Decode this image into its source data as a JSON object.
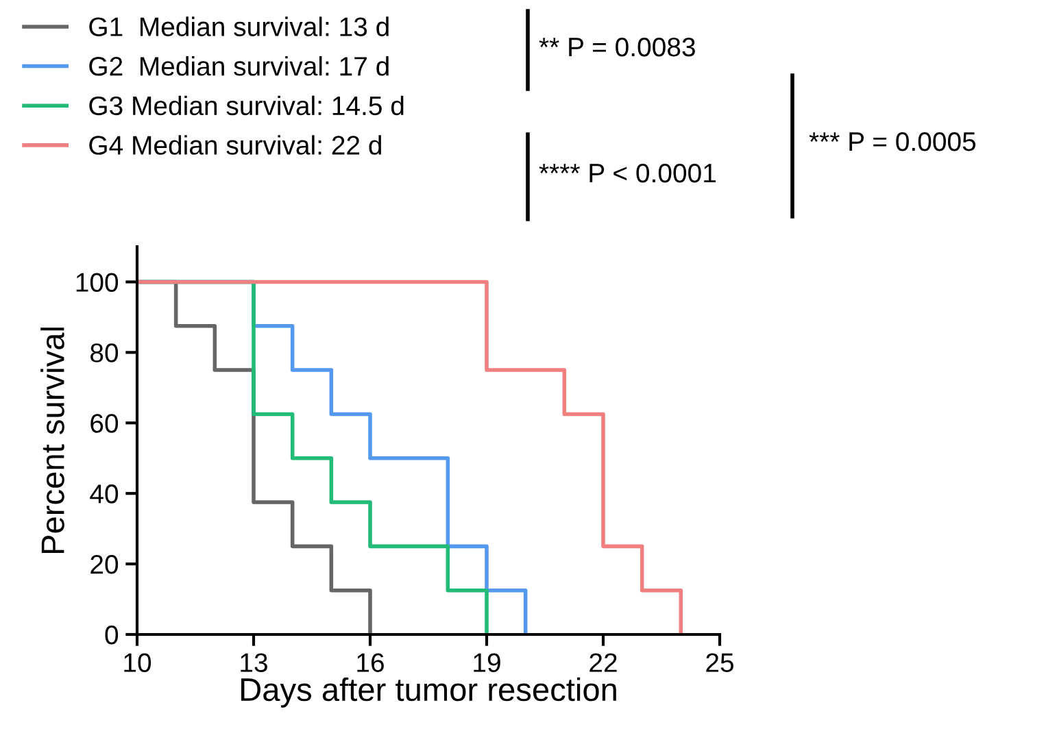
{
  "chart_data": {
    "type": "step",
    "xlabel": "Days after tumor resection",
    "ylabel": "Percent survival",
    "xlim": [
      10,
      25
    ],
    "xticks": [
      10,
      13,
      16,
      19,
      22,
      25
    ],
    "ylim": [
      0,
      110
    ],
    "yticks": [
      0,
      20,
      40,
      60,
      80,
      100
    ],
    "grid": false,
    "legend": "top left",
    "marker": "none",
    "line_style": "solid",
    "series": [
      {
        "name": "G1  Median survival: 13 d",
        "color": "#666666",
        "x": [
          10,
          11,
          12,
          13,
          14,
          15,
          16
        ],
        "values": [
          100,
          87.5,
          75,
          37.5,
          25,
          12.5,
          0
        ]
      },
      {
        "name": "G2  Median survival: 17 d",
        "color": "#5599ee",
        "x": [
          10,
          13,
          14,
          15,
          16,
          18,
          19,
          20
        ],
        "values": [
          100,
          87.5,
          75,
          62.5,
          50,
          25,
          12.5,
          0
        ]
      },
      {
        "name": "G3 Median survival: 14.5 d",
        "color": "#22bb77",
        "x": [
          10,
          13,
          14,
          15,
          16,
          18,
          19
        ],
        "values": [
          100,
          62.5,
          50,
          37.5,
          25,
          12.5,
          0
        ]
      },
      {
        "name": "G4 Median survival: 22 d",
        "color": "#f08080",
        "x": [
          10,
          19,
          21,
          22,
          23,
          24
        ],
        "values": [
          100,
          75,
          62.5,
          25,
          12.5,
          0
        ]
      }
    ],
    "annotations": [
      "** P = 0.0083",
      "**** P < 0.0001",
      "*** P = 0.0005"
    ]
  }
}
